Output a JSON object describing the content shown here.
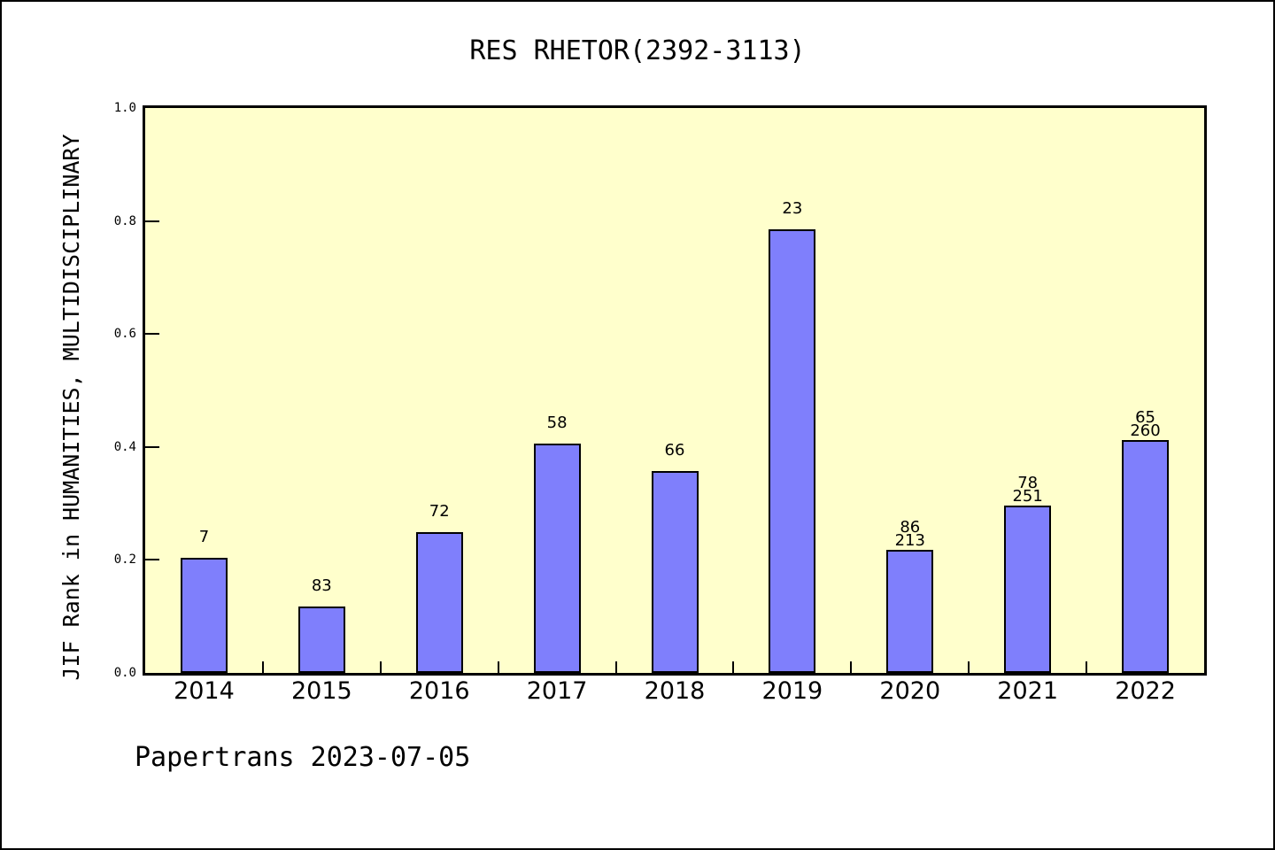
{
  "chart_data": {
    "type": "bar",
    "title": "RES RHETOR(2392-3113)",
    "xlabel": "",
    "ylabel": "JIF Rank in HUMANITIES, MULTIDISCIPLINARY",
    "annotation": "Papertrans 2023-07-05",
    "categories": [
      "2014",
      "2015",
      "2016",
      "2017",
      "2018",
      "2019",
      "2020",
      "2021",
      "2022"
    ],
    "values": [
      0.204,
      0.117,
      0.25,
      0.406,
      0.358,
      0.785,
      0.218,
      0.296,
      0.412
    ],
    "bar_labels": [
      [
        "7"
      ],
      [
        "83"
      ],
      [
        "72"
      ],
      [
        "58"
      ],
      [
        "66"
      ],
      [
        "23"
      ],
      [
        "86",
        "213"
      ],
      [
        "78",
        "251"
      ],
      [
        "65",
        "260"
      ]
    ],
    "ylim": [
      0,
      1
    ],
    "yticks": [
      0.0,
      0.2,
      0.4,
      0.6,
      0.8,
      1.0
    ],
    "grid": false,
    "legend": false,
    "colors": {
      "page_background": "#ffffff",
      "plot_background": "#ffffcc",
      "bar_fill": "#7f7ffc",
      "bar_border": "#000000",
      "frame": "#000000",
      "text": "#000000"
    }
  }
}
